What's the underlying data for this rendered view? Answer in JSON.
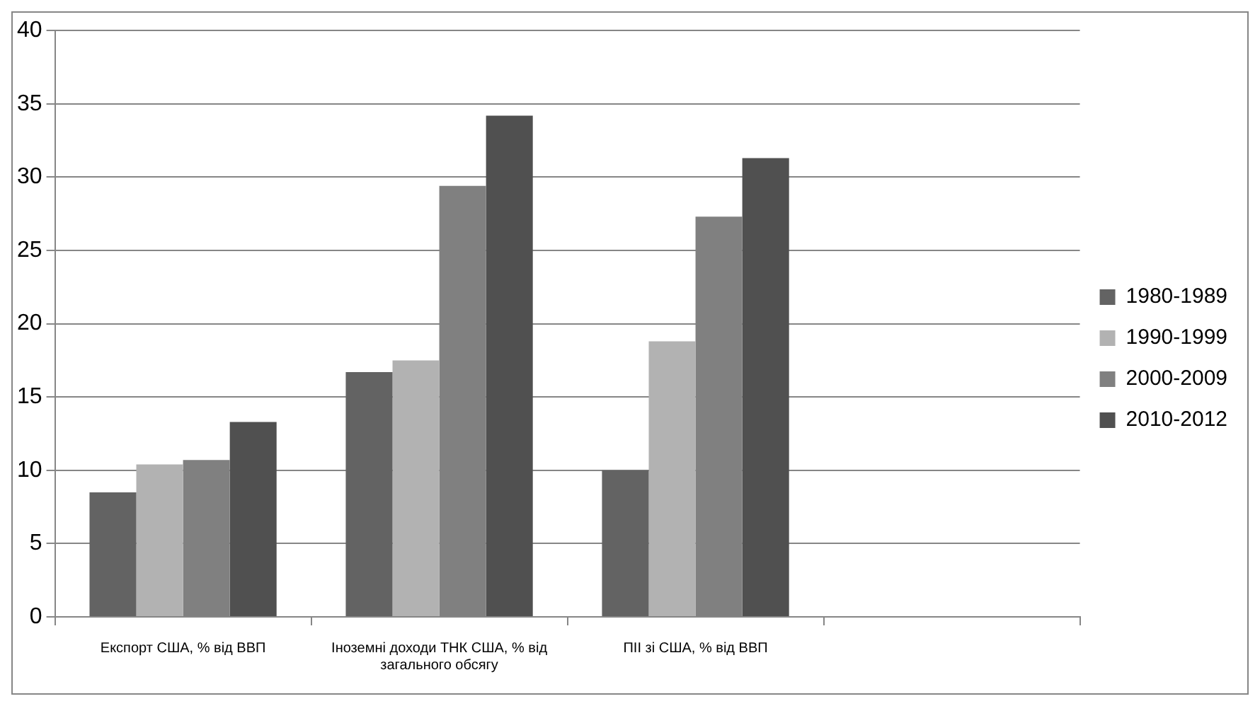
{
  "chart_data": {
    "type": "bar",
    "categories": [
      "Експорт США, % від ВВП",
      "Іноземні доходи ТНК США, % від загального обсягу",
      "ПІІ зі США, % від ВВП",
      null
    ],
    "series": [
      {
        "name": "1980-1989",
        "color": "#636363",
        "values": [
          8.5,
          16.7,
          10,
          null
        ]
      },
      {
        "name": "1990-1999",
        "color": "#b2b2b2",
        "values": [
          10.4,
          17.5,
          18.8,
          null
        ]
      },
      {
        "name": "2000-2009",
        "color": "#808080",
        "values": [
          10.7,
          29.4,
          27.3,
          null
        ]
      },
      {
        "name": "2010-2012",
        "color": "#505050",
        "values": [
          13.3,
          34.2,
          31.3,
          null
        ]
      }
    ],
    "ylim": [
      0,
      40
    ],
    "yticks": [
      0,
      5,
      10,
      15,
      20,
      25,
      30,
      35,
      40
    ],
    "grid": "y",
    "legend": "right"
  }
}
